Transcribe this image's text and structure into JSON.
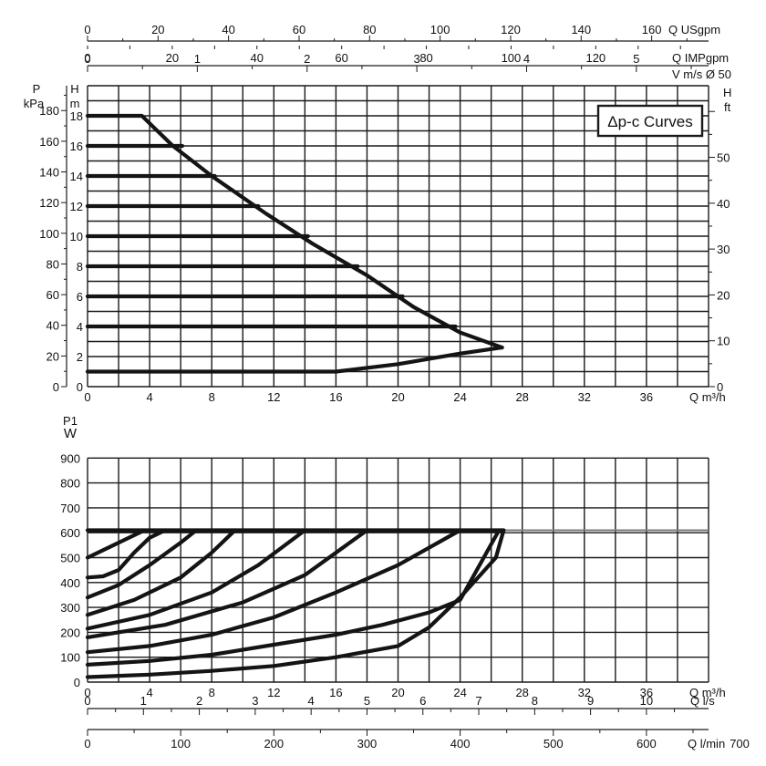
{
  "colors": {
    "curve": "#141414",
    "grid": "#1a1a1a",
    "limit": "#7a7a7a",
    "background": "#ffffff"
  },
  "chart_data": [
    {
      "type": "line",
      "title": "",
      "annotation": "Δp-c Curves",
      "xlim": [
        0,
        40
      ],
      "ylim_m": [
        0,
        20
      ],
      "grid": true,
      "x_axes": {
        "qm3h": {
          "label": "Q m³/h",
          "ticks": [
            "0",
            "4",
            "8",
            "12",
            "16",
            "20",
            "24",
            "28",
            "32",
            "36"
          ],
          "values": [
            0,
            4,
            8,
            12,
            16,
            20,
            24,
            28,
            32,
            36
          ]
        },
        "usgpm": {
          "label": "Q USgpm",
          "ticks": [
            "0",
            "20",
            "40",
            "60",
            "80",
            "100",
            "120",
            "140",
            "160"
          ],
          "values": [
            0,
            20,
            40,
            60,
            80,
            100,
            120,
            140,
            160
          ]
        },
        "impgpm": {
          "label": "Q IMPgpm",
          "ticks": [
            "0",
            "20",
            "40",
            "60",
            "80",
            "100",
            "120"
          ],
          "values": [
            0,
            20,
            40,
            60,
            80,
            100,
            120
          ]
        },
        "vms": {
          "label": "V m/s Ø 50",
          "ticks": [
            "0",
            "1",
            "2",
            "3",
            "4",
            "5"
          ],
          "values": [
            0,
            1,
            2,
            3,
            4,
            5
          ]
        }
      },
      "y_axes": {
        "kpa": {
          "label_line1": "P",
          "label_line2": "kPa",
          "ticks": [
            "0",
            "20",
            "40",
            "60",
            "80",
            "100",
            "120",
            "140",
            "160",
            "180"
          ],
          "values": [
            0,
            20,
            40,
            60,
            80,
            100,
            120,
            140,
            160,
            180
          ]
        },
        "m": {
          "label_line1": "H",
          "label_line2": "m",
          "ticks": [
            "0",
            "2",
            "4",
            "6",
            "8",
            "10",
            "12",
            "14",
            "16",
            "18"
          ],
          "values": [
            0,
            2,
            4,
            6,
            8,
            10,
            12,
            14,
            16,
            18
          ]
        },
        "ft": {
          "label_line1": "H",
          "label_line2": "ft",
          "ticks": [
            "0",
            "10",
            "20",
            "30",
            "40",
            "50"
          ],
          "values": [
            0,
            10,
            20,
            30,
            40,
            50
          ]
        }
      },
      "series": [
        {
          "points": [
            [
              0,
              18
            ],
            [
              3.5,
              18
            ],
            [
              4.2,
              17.3
            ],
            [
              5.5,
              16
            ]
          ]
        },
        {
          "points": [
            [
              0,
              16
            ],
            [
              6.1,
              16
            ]
          ]
        },
        {
          "points": [
            [
              0,
              14
            ],
            [
              8.2,
              14
            ]
          ]
        },
        {
          "points": [
            [
              0,
              12
            ],
            [
              11,
              12
            ]
          ]
        },
        {
          "points": [
            [
              0,
              10
            ],
            [
              14.2,
              10
            ]
          ]
        },
        {
          "points": [
            [
              0,
              8
            ],
            [
              17.4,
              8
            ]
          ]
        },
        {
          "points": [
            [
              0,
              6
            ],
            [
              20.3,
              6
            ]
          ]
        },
        {
          "points": [
            [
              0,
              4
            ],
            [
              23.7,
              4
            ]
          ]
        },
        {
          "points": [
            [
              5.5,
              16
            ],
            [
              8,
              14
            ],
            [
              11.5,
              11.5
            ],
            [
              14.5,
              9.5
            ],
            [
              18,
              7.4
            ],
            [
              21,
              5.3
            ],
            [
              24,
              3.6
            ],
            [
              26.7,
              2.6
            ]
          ]
        },
        {
          "points": [
            [
              0,
              1
            ],
            [
              16,
              1
            ],
            [
              20,
              1.5
            ],
            [
              24,
              2.2
            ],
            [
              26.7,
              2.6
            ]
          ]
        }
      ]
    },
    {
      "type": "line",
      "title": "",
      "xlim": [
        0,
        40
      ],
      "ylim": [
        0,
        1000
      ],
      "grid": true,
      "max_power_line": 610,
      "x_axes": {
        "qm3h": {
          "label": "Q m³/h",
          "ticks": [
            "0",
            "4",
            "8",
            "12",
            "16",
            "20",
            "24",
            "28",
            "32",
            "36"
          ],
          "values": [
            0,
            4,
            8,
            12,
            16,
            20,
            24,
            28,
            32,
            36
          ]
        },
        "ls": {
          "label": "Q l/s",
          "ticks": [
            "0",
            "1",
            "2",
            "3",
            "4",
            "5",
            "6",
            "7",
            "8",
            "9",
            "10"
          ],
          "values": [
            0,
            1,
            2,
            3,
            4,
            5,
            6,
            7,
            8,
            9,
            10
          ]
        },
        "lmin": {
          "label": "Q l/min",
          "ticks": [
            "0",
            "100",
            "200",
            "300",
            "400",
            "500",
            "600",
            "700"
          ],
          "values": [
            0,
            100,
            200,
            300,
            400,
            500,
            600,
            700
          ]
        }
      },
      "y_axis": {
        "label_line1": "P1",
        "label_line2": "W",
        "ticks": [
          "0",
          "100",
          "200",
          "300",
          "400",
          "500",
          "600",
          "700",
          "800",
          "900"
        ],
        "values": [
          0,
          100,
          200,
          300,
          400,
          500,
          600,
          700,
          800,
          900
        ]
      },
      "series": [
        {
          "points": [
            [
              0,
              500
            ],
            [
              2,
              560
            ],
            [
              3.5,
              605
            ]
          ]
        },
        {
          "points": [
            [
              0,
              420
            ],
            [
              1,
              425
            ],
            [
              2,
              450
            ],
            [
              3,
              520
            ],
            [
              4,
              580
            ],
            [
              5,
              610
            ]
          ]
        },
        {
          "points": [
            [
              0,
              340
            ],
            [
              2,
              390
            ],
            [
              4,
              470
            ],
            [
              6,
              560
            ],
            [
              7,
              610
            ]
          ]
        },
        {
          "points": [
            [
              0,
              270
            ],
            [
              3,
              330
            ],
            [
              6,
              420
            ],
            [
              8,
              520
            ],
            [
              9.5,
              610
            ]
          ]
        },
        {
          "points": [
            [
              0,
              215
            ],
            [
              4,
              270
            ],
            [
              8,
              360
            ],
            [
              11,
              470
            ],
            [
              14,
              610
            ]
          ]
        },
        {
          "points": [
            [
              0,
              180
            ],
            [
              5,
              230
            ],
            [
              10,
              320
            ],
            [
              14,
              430
            ],
            [
              18,
              610
            ]
          ]
        },
        {
          "points": [
            [
              0,
              120
            ],
            [
              4,
              145
            ],
            [
              8,
              190
            ],
            [
              12,
              260
            ],
            [
              16,
              360
            ],
            [
              20,
              470
            ],
            [
              24,
              610
            ]
          ]
        },
        {
          "points": [
            [
              0,
              70
            ],
            [
              4,
              85
            ],
            [
              8,
              110
            ],
            [
              12,
              150
            ],
            [
              16,
              190
            ],
            [
              19,
              230
            ],
            [
              22,
              280
            ],
            [
              24,
              330
            ],
            [
              26.5,
              610
            ]
          ]
        },
        {
          "points": [
            [
              0,
              20
            ],
            [
              4,
              30
            ],
            [
              8,
              45
            ],
            [
              12,
              65
            ],
            [
              16,
              100
            ],
            [
              20,
              145
            ],
            [
              22,
              220
            ],
            [
              24,
              340
            ],
            [
              26.3,
              500
            ],
            [
              26.8,
              610
            ]
          ]
        },
        {
          "points": [
            [
              0,
              610
            ],
            [
              26.8,
              610
            ]
          ]
        }
      ]
    }
  ]
}
